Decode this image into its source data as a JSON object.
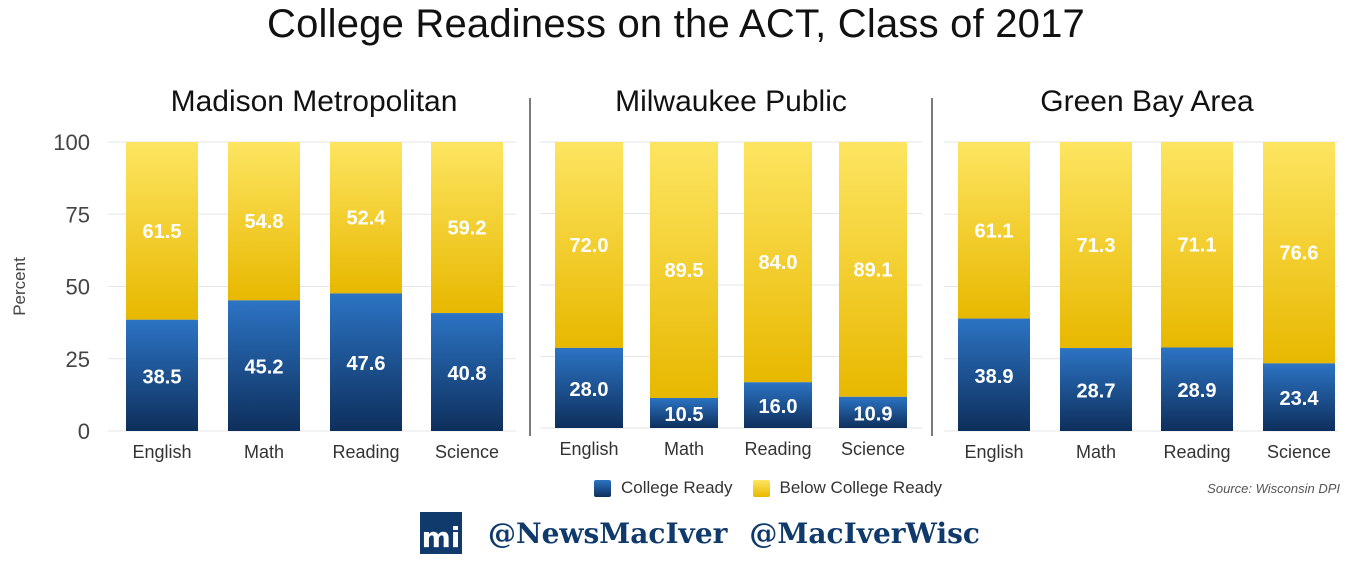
{
  "title": "College Readiness on the ACT, Class of 2017",
  "legend": [
    {
      "label": "College Ready",
      "color": "#1f5ea8"
    },
    {
      "label": "Below College Ready",
      "color": "#f2c200"
    }
  ],
  "source": "Source: Wisconsin DPI",
  "footer": {
    "logo_text": "mi",
    "handles": [
      "@NewsMacIver",
      "@MacIverWisc"
    ]
  },
  "chart_data": [
    {
      "type": "bar",
      "stacked": true,
      "title": "Madison Metropolitan",
      "ylabel": "Percent",
      "ylim": [
        0,
        100
      ],
      "yticks": [
        0,
        25,
        50,
        75,
        100
      ],
      "categories": [
        "English",
        "Math",
        "Reading",
        "Science"
      ],
      "series": [
        {
          "name": "College Ready",
          "values": [
            38.5,
            45.2,
            47.6,
            40.8
          ]
        },
        {
          "name": "Below College Ready",
          "values": [
            61.5,
            54.8,
            52.4,
            59.2
          ]
        }
      ]
    },
    {
      "type": "bar",
      "stacked": true,
      "title": "Milwaukee Public",
      "ylim": [
        0,
        100
      ],
      "categories": [
        "English",
        "Math",
        "Reading",
        "Science"
      ],
      "series": [
        {
          "name": "College Ready",
          "values": [
            28.0,
            10.5,
            16.0,
            10.9
          ]
        },
        {
          "name": "Below College Ready",
          "values": [
            72.0,
            89.5,
            84.0,
            89.1
          ]
        }
      ]
    },
    {
      "type": "bar",
      "stacked": true,
      "title": "Green Bay Area",
      "ylim": [
        0,
        100
      ],
      "categories": [
        "English",
        "Math",
        "Reading",
        "Science"
      ],
      "series": [
        {
          "name": "College Ready",
          "values": [
            38.9,
            28.7,
            28.9,
            23.4
          ]
        },
        {
          "name": "Below College Ready",
          "values": [
            61.1,
            71.3,
            71.1,
            76.6
          ]
        }
      ]
    }
  ]
}
